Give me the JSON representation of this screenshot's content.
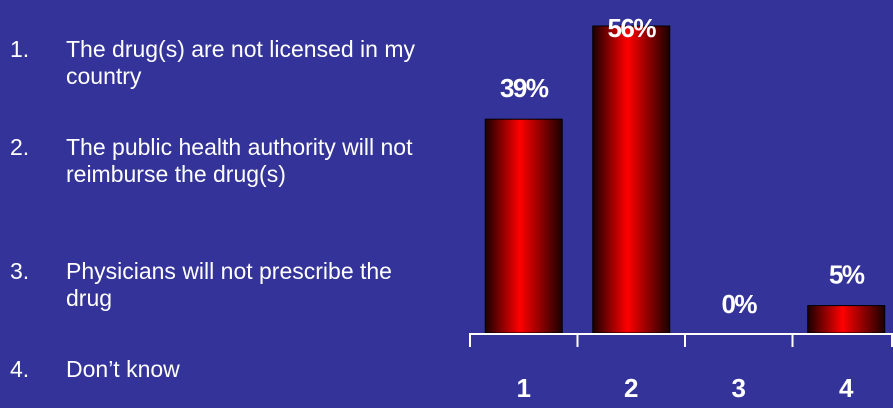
{
  "legend": [
    {
      "number": "1.",
      "text": "The drug(s) are not licensed in my country"
    },
    {
      "number": "2.",
      "text": "The public health authority will not reimburse the drug(s)"
    },
    {
      "number": "3.",
      "text": "Physicians will not prescribe the drug"
    },
    {
      "number": "4.",
      "text": "Don’t know"
    }
  ],
  "colors": {
    "background": "#333399",
    "bar_light": "#ff0000",
    "bar_dark": "#1a0000",
    "text": "#ffffff",
    "axis": "#ffffff"
  },
  "chart_data": {
    "type": "bar",
    "categories": [
      "1",
      "2",
      "3",
      "4"
    ],
    "values": [
      39,
      56,
      0,
      5
    ],
    "value_labels": [
      "39%",
      "56%",
      "0%",
      "5%"
    ],
    "title": "",
    "xlabel": "",
    "ylabel": "",
    "ylim": [
      0,
      56
    ],
    "grid": false,
    "legend": "none"
  }
}
